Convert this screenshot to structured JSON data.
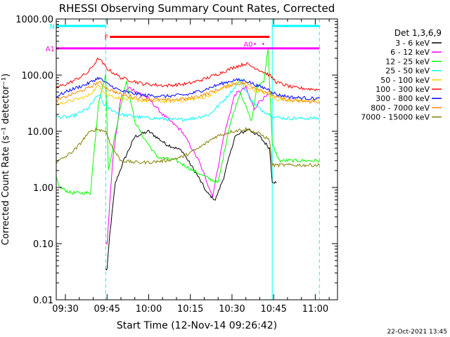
{
  "chart_data": {
    "type": "line",
    "title": "RHESSI Observing Summary Count Rates, Corrected",
    "xlabel": "Start Time (12-Nov-14 09:26:42)",
    "ylabel": "Corrected Count Rate (s⁻¹ detector⁻¹)",
    "y_scale": "log",
    "ylim": [
      0.01,
      1000
    ],
    "y_ticks": [
      "0.01",
      "0.10",
      "1.00",
      "10.00",
      "100.00",
      "1000.00"
    ],
    "y_tick_values": [
      0.01,
      0.1,
      1,
      10,
      100,
      1000
    ],
    "xlim": [
      "09:26:42",
      "11:08:00"
    ],
    "x_ticks": [
      "09:30",
      "09:45",
      "10:00",
      "10:15",
      "10:30",
      "10:45",
      "11:00"
    ],
    "x_tick_minutes": [
      570,
      585,
      600,
      615,
      630,
      645,
      660
    ],
    "legend_title": "Det 1,3,6,9",
    "legend_position": "right",
    "vertical_markers": [
      {
        "time": "09:26:42",
        "style": "solid",
        "color": "#00ffff"
      },
      {
        "time": "09:44:30",
        "style": "dashed",
        "color": "#00ffff"
      },
      {
        "time": "10:44:30",
        "style": "solid",
        "color": "#00ffff"
      },
      {
        "time": "11:01:30",
        "style": "dashed",
        "color": "#00ffff"
      }
    ],
    "state_bars": [
      {
        "label": "N",
        "color": "#00ffff",
        "level": 750,
        "segments": [
          [
            "09:26:42",
            "09:44:30"
          ],
          [
            "10:44:30",
            "11:01:30"
          ]
        ]
      },
      {
        "label": "F",
        "color": "#ff0000",
        "level": 480,
        "segments": [
          [
            "09:46:00",
            "10:43:30"
          ]
        ]
      },
      {
        "label": "A0",
        "color": "#ff00ff",
        "level": 360,
        "segments": [
          [
            "10:38:00",
            "10:38:30"
          ],
          [
            "10:41:00",
            "10:41:30"
          ]
        ]
      },
      {
        "label": "A1",
        "color": "#ff00ff",
        "level": 300,
        "segments": [
          [
            "09:26:42",
            "11:01:30"
          ]
        ]
      }
    ],
    "series": [
      {
        "name": "3 - 6 keV",
        "color": "#000000",
        "x": [
          "09:44:30",
          "09:45:00",
          "09:46:00",
          "09:48:00",
          "09:51:00",
          "09:55:00",
          "10:00:00",
          "10:06:00",
          "10:12:00",
          "10:18:00",
          "10:21:00",
          "10:24:00",
          "10:27:00",
          "10:31:00",
          "10:36:00",
          "10:40:00",
          "10:43:30",
          "10:44:30",
          "10:46:00"
        ],
        "values": [
          0.035,
          0.035,
          0.15,
          1.2,
          3,
          8,
          10,
          6,
          4.5,
          1.5,
          0.8,
          0.6,
          1.5,
          8,
          11,
          8,
          5,
          1.3,
          1.2
        ]
      },
      {
        "name": "6 - 12 keV",
        "color": "#ff00ff",
        "x": [
          "09:44:30",
          "09:45:00",
          "09:47:00",
          "09:50:00",
          "09:53:00",
          "09:56:00",
          "10:00:00",
          "10:05:00",
          "10:12:00",
          "10:18:00",
          "10:23:00",
          "10:27:00",
          "10:31:00",
          "10:35:00",
          "10:38:00",
          "10:40:00",
          "10:43:30",
          "10:44:30"
        ],
        "values": [
          0.1,
          0.1,
          3,
          40,
          60,
          50,
          38,
          20,
          10,
          3,
          0.7,
          8,
          45,
          60,
          25,
          35,
          45,
          45
        ]
      },
      {
        "name": "12 - 25 keV",
        "color": "#00ff00",
        "x": [
          "09:26:42",
          "09:28:00",
          "09:32:00",
          "09:36:00",
          "09:39:00",
          "09:42:00",
          "09:44:30",
          "09:45:30",
          "09:47:00",
          "09:50:00",
          "09:52:00",
          "09:55:00",
          "09:58:00",
          "10:03:00",
          "10:10:00",
          "10:16:00",
          "10:21:00",
          "10:25:00",
          "10:29:00",
          "10:33:00",
          "10:37:00",
          "10:39:00",
          "10:41:30",
          "10:43:00",
          "10:44:30",
          "10:47:00",
          "11:01:30"
        ],
        "values": [
          1.5,
          1,
          0.8,
          0.8,
          0.8,
          35,
          100,
          2,
          5,
          30,
          80,
          15,
          8,
          3.5,
          3,
          2,
          1.5,
          1.2,
          12,
          50,
          15,
          60,
          80,
          300,
          6,
          3,
          3
        ]
      },
      {
        "name": "25 - 50 keV",
        "color": "#00ffff",
        "x": [
          "09:26:42",
          "09:32:00",
          "09:38:00",
          "09:42:00",
          "09:44:00",
          "09:46:00",
          "09:50:00",
          "09:56:00",
          "10:02:00",
          "10:10:00",
          "10:16:00",
          "10:22:00",
          "10:28:00",
          "10:33:00",
          "10:37:00",
          "10:40:00",
          "10:43:30",
          "10:45:00",
          "10:50:00",
          "11:01:30"
        ],
        "values": [
          18,
          18,
          25,
          45,
          30,
          25,
          20,
          18,
          17,
          16,
          17,
          20,
          40,
          80,
          35,
          25,
          20,
          18,
          17,
          17
        ]
      },
      {
        "name": "50 - 100 keV",
        "color": "#ffcc00",
        "x": [
          "09:26:42",
          "09:32:00",
          "09:38:00",
          "09:42:00",
          "09:45:00",
          "09:50:00",
          "09:58:00",
          "10:06:00",
          "10:14:00",
          "10:20:00",
          "10:26:00",
          "10:30:00",
          "10:33:00",
          "10:36:00",
          "10:40:00",
          "10:43:30",
          "10:45:00",
          "10:52:00",
          "11:01:30"
        ],
        "values": [
          30,
          35,
          42,
          65,
          45,
          38,
          35,
          34,
          36,
          40,
          55,
          70,
          75,
          60,
          50,
          45,
          38,
          35,
          35
        ]
      },
      {
        "name": "100 - 300 keV",
        "color": "#ff0000",
        "x": [
          "09:26:42",
          "09:32:00",
          "09:38:00",
          "09:42:00",
          "09:45:00",
          "09:50:00",
          "09:58:00",
          "10:06:00",
          "10:14:00",
          "10:20:00",
          "10:26:00",
          "10:31:00",
          "10:35:00",
          "10:39:00",
          "10:43:30",
          "10:46:00",
          "10:52:00",
          "11:01:30"
        ],
        "values": [
          60,
          75,
          110,
          200,
          130,
          90,
          70,
          65,
          70,
          85,
          110,
          140,
          160,
          130,
          100,
          75,
          60,
          55
        ]
      },
      {
        "name": "300 - 800 keV",
        "color": "#0000ff",
        "x": [
          "09:26:42",
          "09:32:00",
          "09:38:00",
          "09:42:00",
          "09:45:00",
          "09:50:00",
          "09:58:00",
          "10:06:00",
          "10:14:00",
          "10:20:00",
          "10:26:00",
          "10:31:00",
          "10:35:00",
          "10:39:00",
          "10:43:30",
          "10:46:00",
          "10:52:00",
          "11:01:30"
        ],
        "values": [
          42,
          55,
          70,
          90,
          70,
          52,
          44,
          42,
          45,
          55,
          70,
          82,
          80,
          65,
          55,
          45,
          40,
          38
        ]
      },
      {
        "name": "800 - 7000 keV",
        "color": "#ff8800",
        "x": [
          "09:26:42",
          "09:32:00",
          "09:38:00",
          "09:42:00",
          "09:45:00",
          "09:50:00",
          "09:58:00",
          "10:06:00",
          "10:14:00",
          "10:20:00",
          "10:26:00",
          "10:31:00",
          "10:35:00",
          "10:39:00",
          "10:43:30",
          "10:46:00",
          "10:52:00",
          "11:01:30"
        ],
        "values": [
          35,
          45,
          58,
          75,
          58,
          45,
          38,
          36,
          38,
          45,
          58,
          70,
          72,
          58,
          48,
          40,
          35,
          33
        ]
      },
      {
        "name": "7000 - 15000 keV",
        "color": "#808000",
        "x": [
          "09:26:42",
          "09:30:00",
          "09:34:00",
          "09:38:00",
          "09:41:00",
          "09:44:30",
          "09:47:00",
          "09:50:00",
          "09:55:00",
          "10:00:00",
          "10:06:00",
          "10:12:00",
          "10:18:00",
          "10:24:00",
          "10:30:00",
          "10:35:00",
          "10:40:00",
          "10:43:30",
          "10:44:30",
          "10:48:00",
          "11:01:30"
        ],
        "values": [
          2.8,
          3.5,
          5,
          9,
          11,
          10,
          5,
          3,
          2.8,
          2.8,
          3,
          3.5,
          5,
          8,
          10,
          11,
          9,
          7,
          2.5,
          2.5,
          2.5
        ]
      }
    ]
  },
  "footer_date": "22-Oct-2021 13:45"
}
